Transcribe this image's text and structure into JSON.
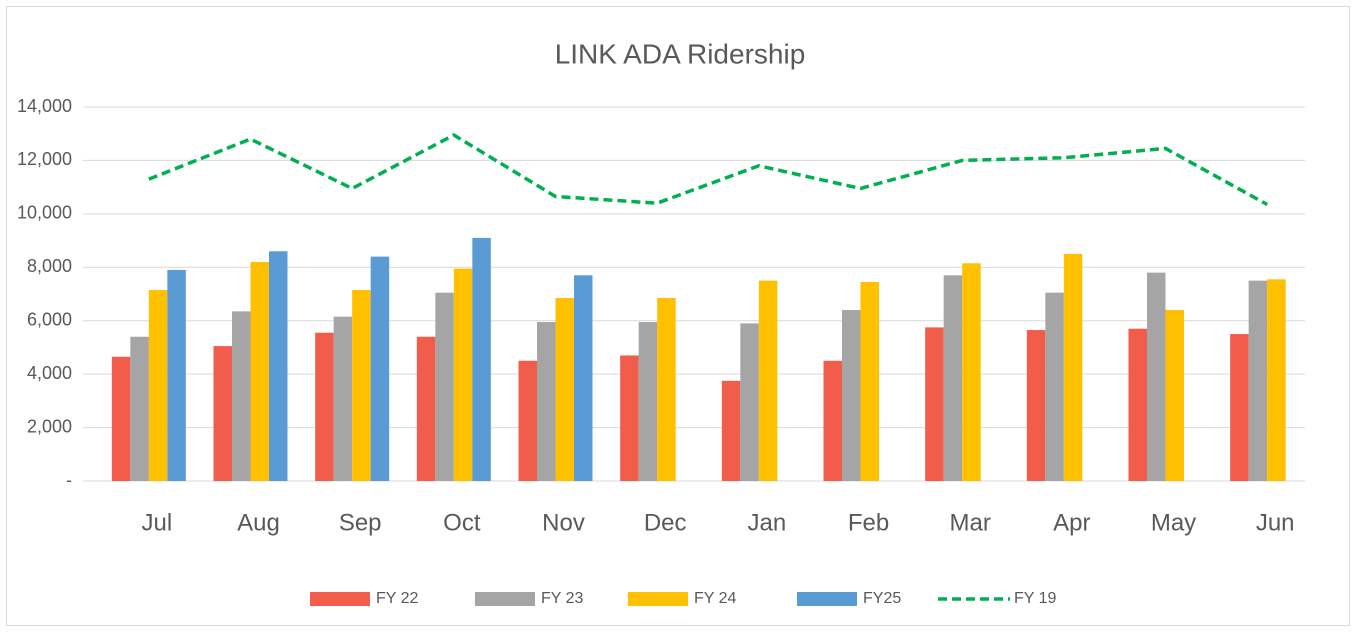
{
  "chart_data": {
    "type": "bar",
    "title": "LINK ADA Ridership",
    "categories": [
      "Jul",
      "Aug",
      "Sep",
      "Oct",
      "Nov",
      "Dec",
      "Jan",
      "Feb",
      "Mar",
      "Apr",
      "May",
      "Jun"
    ],
    "series": [
      {
        "name": "FY 22",
        "color": "#f15c4b",
        "values": [
          4650,
          5050,
          5550,
          5400,
          4500,
          4700,
          3750,
          4500,
          5750,
          5650,
          5700,
          5500
        ]
      },
      {
        "name": "FY 23",
        "color": "#a5a5a5",
        "values": [
          5400,
          6350,
          6150,
          7050,
          5950,
          5950,
          5900,
          6400,
          7700,
          7050,
          7800,
          7500
        ]
      },
      {
        "name": "FY 24",
        "color": "#ffc000",
        "values": [
          7150,
          8200,
          7150,
          7950,
          6850,
          6850,
          7500,
          7450,
          8150,
          8500,
          6400,
          7550
        ]
      },
      {
        "name": "FY25",
        "color": "#5b9bd5",
        "values": [
          7900,
          8600,
          8400,
          9100,
          7700,
          null,
          null,
          null,
          null,
          null,
          null,
          null
        ]
      },
      {
        "name": "FY 19",
        "color": "#00b050",
        "type": "line",
        "dashed": true,
        "values": [
          11300,
          12800,
          10950,
          12950,
          10650,
          10400,
          11800,
          10950,
          12000,
          12100,
          12450,
          10350
        ]
      }
    ],
    "ylim": [
      0,
      14000
    ],
    "yticks": [
      {
        "value": 0,
        "label": "-"
      },
      {
        "value": 2000,
        "label": "2,000"
      },
      {
        "value": 4000,
        "label": "4,000"
      },
      {
        "value": 6000,
        "label": "6,000"
      },
      {
        "value": 8000,
        "label": "8,000"
      },
      {
        "value": 10000,
        "label": "10,000"
      },
      {
        "value": 12000,
        "label": "12,000"
      },
      {
        "value": 14000,
        "label": "14,000"
      }
    ],
    "grid": true,
    "legend": "bottom"
  }
}
